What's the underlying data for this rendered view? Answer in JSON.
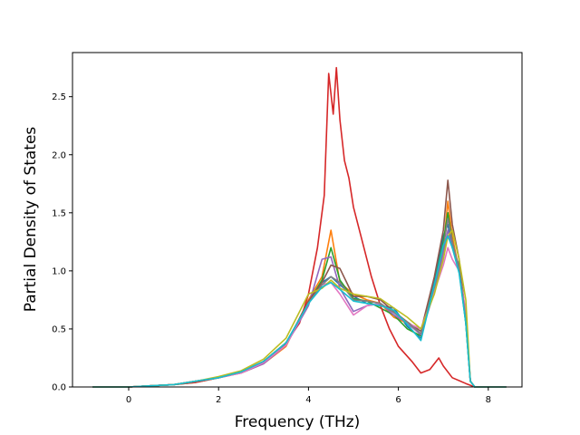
{
  "chart_data": {
    "type": "line",
    "title": "",
    "xlabel": "Frequency (THz)",
    "ylabel": "Partial Density of States",
    "xlim": [
      -1.25,
      8.75
    ],
    "ylim": [
      0,
      2.88
    ],
    "xticks": [
      0,
      2,
      4,
      6,
      8
    ],
    "xtick_labels": [
      "0",
      "2",
      "4",
      "6",
      "8"
    ],
    "yticks": [
      0.0,
      0.5,
      1.0,
      1.5,
      2.0,
      2.5
    ],
    "ytick_labels": [
      "0.0",
      "0.5",
      "1.0",
      "1.5",
      "2.0",
      "2.5"
    ],
    "grid": false,
    "legend": "none",
    "series": [
      {
        "color": "#1f77b4",
        "x": [
          -0.8,
          0,
          0.5,
          1,
          1.5,
          2,
          2.5,
          3,
          3.5,
          4,
          4.3,
          4.5,
          4.7,
          5,
          5.3,
          5.6,
          5.9,
          6.2,
          6.5,
          6.8,
          7.0,
          7.1,
          7.2,
          7.35,
          7.5,
          7.6,
          7.7,
          8.4
        ],
        "y": [
          0,
          0,
          0.01,
          0.02,
          0.05,
          0.08,
          0.13,
          0.22,
          0.38,
          0.72,
          0.9,
          0.95,
          0.88,
          0.78,
          0.72,
          0.7,
          0.68,
          0.52,
          0.42,
          0.9,
          1.3,
          1.4,
          1.2,
          1.05,
          0.55,
          0.05,
          0,
          0
        ]
      },
      {
        "color": "#ff7f0e",
        "x": [
          -0.8,
          0,
          0.5,
          1,
          1.5,
          2,
          2.5,
          3,
          3.5,
          4,
          4.3,
          4.5,
          4.7,
          5,
          5.3,
          5.6,
          5.9,
          6.2,
          6.5,
          6.8,
          7.0,
          7.1,
          7.2,
          7.35,
          7.5,
          7.6,
          7.7,
          8.4
        ],
        "y": [
          0,
          0,
          0.01,
          0.02,
          0.05,
          0.08,
          0.12,
          0.2,
          0.35,
          0.75,
          0.95,
          1.35,
          0.9,
          0.8,
          0.75,
          0.72,
          0.6,
          0.55,
          0.45,
          0.85,
          1.2,
          1.6,
          1.3,
          1.0,
          0.6,
          0.05,
          0,
          0
        ]
      },
      {
        "color": "#2ca02c",
        "x": [
          -0.8,
          0,
          0.5,
          1,
          1.5,
          2,
          2.5,
          3,
          3.5,
          4,
          4.3,
          4.5,
          4.7,
          5,
          5.3,
          5.6,
          5.9,
          6.2,
          6.5,
          6.8,
          7.0,
          7.1,
          7.2,
          7.35,
          7.5,
          7.6,
          7.7,
          8.4
        ],
        "y": [
          0,
          0,
          0.01,
          0.02,
          0.04,
          0.08,
          0.13,
          0.21,
          0.37,
          0.73,
          0.92,
          1.2,
          0.92,
          0.76,
          0.74,
          0.68,
          0.62,
          0.5,
          0.44,
          0.88,
          1.25,
          1.5,
          1.25,
          1.0,
          0.55,
          0.05,
          0,
          0
        ]
      },
      {
        "color": "#d62728",
        "x": [
          -0.8,
          0,
          0.5,
          1,
          1.5,
          2,
          2.5,
          3,
          3.5,
          3.8,
          4.0,
          4.2,
          4.35,
          4.45,
          4.55,
          4.62,
          4.7,
          4.8,
          4.9,
          5.0,
          5.2,
          5.4,
          5.6,
          5.8,
          6.0,
          6.3,
          6.5,
          6.7,
          6.9,
          7.0,
          7.2,
          7.5,
          7.7,
          8.4
        ],
        "y": [
          0,
          0,
          0.01,
          0.02,
          0.04,
          0.08,
          0.13,
          0.22,
          0.38,
          0.55,
          0.8,
          1.2,
          1.65,
          2.7,
          2.35,
          2.75,
          2.3,
          1.95,
          1.8,
          1.55,
          1.25,
          0.95,
          0.7,
          0.5,
          0.35,
          0.22,
          0.12,
          0.15,
          0.25,
          0.18,
          0.08,
          0.03,
          0,
          0
        ]
      },
      {
        "color": "#9467bd",
        "x": [
          -0.8,
          0,
          0.5,
          1,
          1.5,
          2,
          2.5,
          3,
          3.5,
          4,
          4.3,
          4.5,
          4.7,
          5,
          5.3,
          5.6,
          5.9,
          6.2,
          6.5,
          6.8,
          7.0,
          7.1,
          7.2,
          7.35,
          7.5,
          7.6,
          7.7,
          8.4
        ],
        "y": [
          0,
          0,
          0.01,
          0.02,
          0.05,
          0.08,
          0.12,
          0.2,
          0.36,
          0.7,
          1.1,
          1.12,
          0.85,
          0.65,
          0.7,
          0.72,
          0.62,
          0.55,
          0.45,
          0.82,
          1.15,
          1.35,
          1.2,
          1.0,
          0.6,
          0.05,
          0,
          0
        ]
      },
      {
        "color": "#8c564b",
        "x": [
          -0.8,
          0,
          0.5,
          1,
          1.5,
          2,
          2.5,
          3,
          3.5,
          4,
          4.3,
          4.5,
          4.7,
          5,
          5.3,
          5.6,
          5.9,
          6.2,
          6.5,
          6.8,
          7.0,
          7.1,
          7.2,
          7.35,
          7.5,
          7.6,
          7.7,
          8.4
        ],
        "y": [
          0,
          0,
          0.01,
          0.02,
          0.05,
          0.08,
          0.13,
          0.22,
          0.37,
          0.74,
          0.9,
          1.05,
          1.02,
          0.78,
          0.78,
          0.75,
          0.65,
          0.56,
          0.48,
          0.95,
          1.35,
          1.78,
          1.4,
          1.1,
          0.6,
          0.05,
          0,
          0
        ]
      },
      {
        "color": "#e377c2",
        "x": [
          -0.8,
          0,
          0.5,
          1,
          1.5,
          2,
          2.5,
          3,
          3.5,
          4,
          4.3,
          4.5,
          4.7,
          5,
          5.3,
          5.6,
          5.9,
          6.2,
          6.5,
          6.8,
          7.0,
          7.1,
          7.2,
          7.35,
          7.5,
          7.6,
          7.7,
          8.4
        ],
        "y": [
          0,
          0,
          0.01,
          0.02,
          0.05,
          0.08,
          0.12,
          0.21,
          0.36,
          0.72,
          0.88,
          0.9,
          0.8,
          0.62,
          0.7,
          0.72,
          0.64,
          0.55,
          0.5,
          0.82,
          1.05,
          1.2,
          1.1,
          1.0,
          0.65,
          0.05,
          0,
          0
        ]
      },
      {
        "color": "#7f7f7f",
        "x": [
          -0.8,
          0,
          0.5,
          1,
          1.5,
          2,
          2.5,
          3,
          3.5,
          4,
          4.3,
          4.5,
          4.7,
          5,
          5.3,
          5.6,
          5.9,
          6.2,
          6.5,
          6.8,
          7.0,
          7.1,
          7.2,
          7.35,
          7.5,
          7.6,
          7.7,
          8.4
        ],
        "y": [
          0,
          0,
          0.01,
          0.02,
          0.05,
          0.08,
          0.13,
          0.22,
          0.38,
          0.72,
          0.88,
          0.95,
          0.9,
          0.75,
          0.74,
          0.72,
          0.64,
          0.56,
          0.46,
          0.86,
          1.2,
          1.45,
          1.25,
          1.02,
          0.58,
          0.05,
          0,
          0
        ]
      },
      {
        "color": "#bcbd22",
        "x": [
          -0.8,
          0,
          0.5,
          1,
          1.5,
          2,
          2.5,
          3,
          3.5,
          4,
          4.3,
          4.5,
          4.7,
          5,
          5.3,
          5.6,
          5.9,
          6.2,
          6.5,
          6.8,
          7.0,
          7.1,
          7.2,
          7.35,
          7.5,
          7.6,
          7.7,
          8.4
        ],
        "y": [
          0,
          0,
          0.01,
          0.02,
          0.05,
          0.09,
          0.14,
          0.24,
          0.42,
          0.8,
          0.85,
          0.92,
          0.85,
          0.8,
          0.78,
          0.76,
          0.68,
          0.6,
          0.5,
          0.8,
          1.1,
          1.3,
          1.35,
          1.1,
          0.75,
          0.05,
          0,
          0
        ]
      },
      {
        "color": "#17becf",
        "x": [
          -0.8,
          0,
          0.5,
          1,
          1.5,
          2,
          2.5,
          3,
          3.5,
          4,
          4.3,
          4.5,
          4.7,
          5,
          5.3,
          5.6,
          5.9,
          6.2,
          6.5,
          6.8,
          7.0,
          7.1,
          7.2,
          7.35,
          7.5,
          7.6,
          7.7,
          8.4
        ],
        "y": [
          0,
          0,
          0.01,
          0.02,
          0.05,
          0.08,
          0.13,
          0.22,
          0.38,
          0.72,
          0.86,
          0.9,
          0.84,
          0.74,
          0.72,
          0.7,
          0.66,
          0.54,
          0.4,
          0.88,
          1.22,
          1.3,
          1.2,
          0.98,
          0.55,
          0.05,
          0,
          0
        ]
      }
    ]
  }
}
